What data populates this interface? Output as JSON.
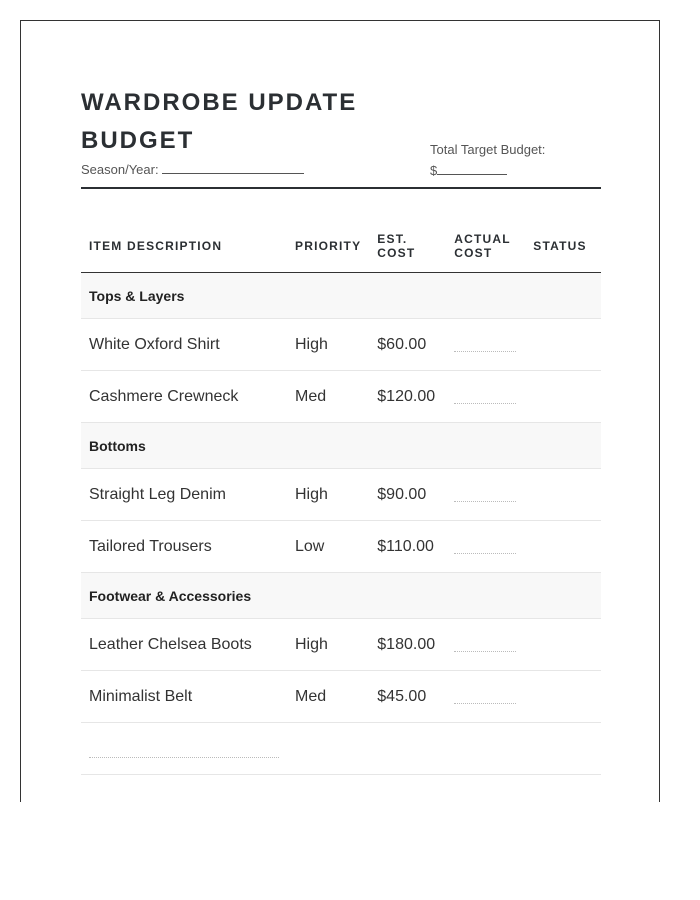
{
  "title": "WARDROBE UPDATE BUDGET",
  "season_label": "Season/Year:",
  "target_label": "Total Target Budget:",
  "target_prefix": "$",
  "columns": [
    "ITEM DESCRIPTION",
    "PRIORITY",
    "EST. COST",
    "ACTUAL COST",
    "STATUS"
  ],
  "sections": [
    {
      "name": "Tops & Layers",
      "items": [
        {
          "description": "White Oxford Shirt",
          "priority": "High",
          "est_cost": "$60.00"
        },
        {
          "description": "Cashmere Crewneck",
          "priority": "Med",
          "est_cost": "$120.00"
        }
      ]
    },
    {
      "name": "Bottoms",
      "items": [
        {
          "description": "Straight Leg Denim",
          "priority": "High",
          "est_cost": "$90.00"
        },
        {
          "description": "Tailored Trousers",
          "priority": "Low",
          "est_cost": "$110.00"
        }
      ]
    },
    {
      "name": "Footwear & Accessories",
      "items": [
        {
          "description": "Leather Chelsea Boots",
          "priority": "High",
          "est_cost": "$180.00"
        },
        {
          "description": "Minimalist Belt",
          "priority": "Med",
          "est_cost": "$45.00"
        }
      ]
    }
  ]
}
